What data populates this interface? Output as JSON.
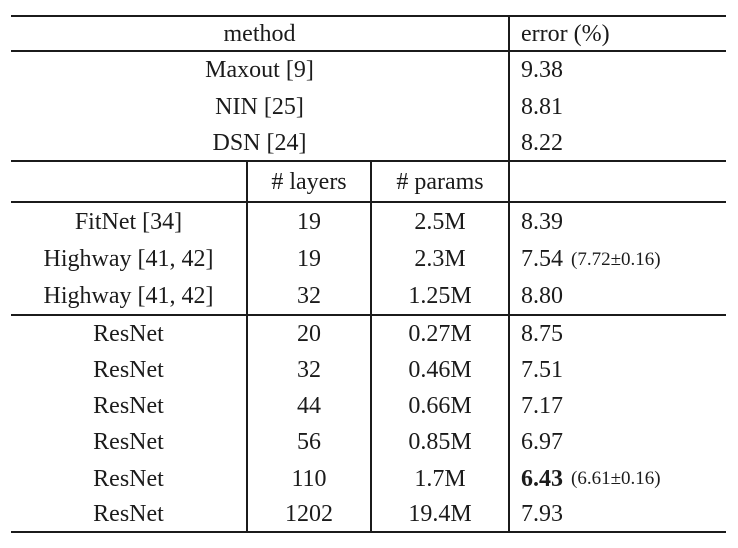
{
  "table": {
    "header": {
      "method": "method",
      "error": "error (%)"
    },
    "subheader": {
      "layers": "# layers",
      "params": "# params"
    },
    "top_rows": [
      {
        "method": "Maxout [9]",
        "error": "9.38"
      },
      {
        "method": "NIN [25]",
        "error": "8.81"
      },
      {
        "method": "DSN [24]",
        "error": "8.22"
      }
    ],
    "mid_rows": [
      {
        "method": "FitNet [34]",
        "layers": "19",
        "params": "2.5M",
        "error": "8.39",
        "note": ""
      },
      {
        "method": "Highway [41, 42]",
        "layers": "19",
        "params": "2.3M",
        "error": "7.54",
        "note": "(7.72±0.16)"
      },
      {
        "method": "Highway [41, 42]",
        "layers": "32",
        "params": "1.25M",
        "error": "8.80",
        "note": ""
      }
    ],
    "resnet_rows": [
      {
        "method": "ResNet",
        "layers": "20",
        "params": "0.27M",
        "error": "8.75",
        "note": ""
      },
      {
        "method": "ResNet",
        "layers": "32",
        "params": "0.46M",
        "error": "7.51",
        "note": ""
      },
      {
        "method": "ResNet",
        "layers": "44",
        "params": "0.66M",
        "error": "7.17",
        "note": ""
      },
      {
        "method": "ResNet",
        "layers": "56",
        "params": "0.85M",
        "error": "6.97",
        "note": ""
      },
      {
        "method": "ResNet",
        "layers": "110",
        "params": "1.7M",
        "error": "6.43",
        "note": "(6.61±0.16)"
      },
      {
        "method": "ResNet",
        "layers": "1202",
        "params": "19.4M",
        "error": "7.93",
        "note": ""
      }
    ]
  }
}
